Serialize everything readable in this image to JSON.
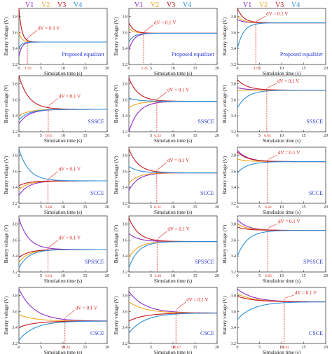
{
  "chart_data": {
    "type": "line",
    "layout": "5 rows x 3 columns of line plots",
    "legend": {
      "labels": [
        "V1",
        "V2",
        "V3",
        "V4"
      ],
      "colors": [
        "#8b2bc7",
        "#f2a51d",
        "#c4161c",
        "#2a8fd8"
      ]
    },
    "xlabel": "Simulation time (s)",
    "ylabel": "Battery voltage (V)",
    "xlim": [
      0,
      20
    ],
    "x_ticks": [
      "0",
      "5",
      "10",
      "15",
      "20"
    ],
    "annotation_label": "dV = 0.1 V",
    "colors": {
      "annotation": "#e0231c",
      "method_label": "#2d3bd6"
    },
    "panels": [
      {
        "row": 0,
        "col": 0,
        "method": "Proposed equalizer",
        "t_eq": 1.92,
        "t_eq_label": "1.92",
        "ylim": [
          3.2,
          3.9
        ],
        "y_ticks": [
          "3.2",
          "3.4",
          "3.6",
          "3.8"
        ],
        "initial": [
          3.3,
          3.6,
          3.9,
          3.4
        ],
        "final": 3.48,
        "y_at_t_eq": 3.53
      },
      {
        "row": 0,
        "col": 1,
        "method": "Proposed equalizer",
        "t_eq": 3.33,
        "t_eq_label": "3.33",
        "ylim": [
          3.2,
          3.9
        ],
        "y_ticks": [
          "3.2",
          "3.4",
          "3.6",
          "3.8"
        ],
        "initial": [
          3.38,
          3.65,
          3.72,
          3.48
        ],
        "final": 3.59,
        "y_at_t_eq": 3.6
      },
      {
        "row": 0,
        "col": 2,
        "method": "Proposed equalizer",
        "t_eq": 4.15,
        "t_eq_label": "4.15",
        "ylim": [
          3.2,
          3.9
        ],
        "y_ticks": [
          "3.2",
          "3.4",
          "3.6",
          "3.8"
        ],
        "initial": [
          3.76,
          3.8,
          3.9,
          3.4
        ],
        "final": 3.72,
        "y_at_t_eq": 3.73
      },
      {
        "row": 1,
        "col": 0,
        "method": "SSSCE",
        "t_eq": 6.65,
        "t_eq_label": "6.65",
        "ylim": [
          3.2,
          3.9
        ],
        "y_ticks": [
          "3.2",
          "3.4",
          "3.6",
          "3.8"
        ],
        "initial": [
          3.3,
          3.4,
          3.9,
          3.35
        ],
        "final": 3.48,
        "y_at_t_eq": 3.52
      },
      {
        "row": 1,
        "col": 1,
        "method": "SSSCE",
        "t_eq": 6.33,
        "t_eq_label": "6.33",
        "ylim": [
          3.2,
          3.9
        ],
        "y_ticks": [
          "3.2",
          "3.4",
          "3.6",
          "3.8"
        ],
        "initial": [
          3.2,
          3.5,
          3.87,
          3.62
        ],
        "final": 3.58,
        "y_at_t_eq": 3.6
      },
      {
        "row": 1,
        "col": 2,
        "method": "SSSCE",
        "t_eq": 6.65,
        "t_eq_label": "6.65",
        "ylim": [
          3.2,
          3.9
        ],
        "y_ticks": [
          "3.2",
          "3.4",
          "3.6",
          "3.8"
        ],
        "initial": [
          3.75,
          3.72,
          3.85,
          3.5
        ],
        "final": 3.72,
        "y_at_t_eq": 3.74
      },
      {
        "row": 2,
        "col": 0,
        "method": "SCCE",
        "t_eq": 6.6,
        "t_eq_label": "6.60",
        "ylim": [
          3.2,
          3.9
        ],
        "y_ticks": [
          "3.2",
          "3.4",
          "3.6",
          "3.8"
        ],
        "initial": [
          3.3,
          3.37,
          3.42,
          3.88
        ],
        "final": 3.48,
        "y_at_t_eq": 3.5
      },
      {
        "row": 2,
        "col": 1,
        "method": "SCCE",
        "t_eq": 6.32,
        "t_eq_label": "6.32",
        "ylim": [
          3.2,
          3.9
        ],
        "y_ticks": [
          "3.2",
          "3.4",
          "3.6",
          "3.8"
        ],
        "initial": [
          3.36,
          3.45,
          3.88,
          3.66
        ],
        "final": 3.58,
        "y_at_t_eq": 3.61
      },
      {
        "row": 2,
        "col": 2,
        "method": "SCCE",
        "t_eq": 6.82,
        "t_eq_label": "6.82",
        "ylim": [
          3.2,
          3.9
        ],
        "y_ticks": [
          "3.2",
          "3.4",
          "3.6",
          "3.8"
        ],
        "initial": [
          3.86,
          3.75,
          3.84,
          3.58
        ],
        "final": 3.72,
        "y_at_t_eq": 3.74
      },
      {
        "row": 3,
        "col": 0,
        "method": "SPSSCE",
        "t_eq": 6.61,
        "t_eq_label": "6.61",
        "ylim": [
          3.2,
          3.9
        ],
        "y_ticks": [
          "3.2",
          "3.4",
          "3.6",
          "3.8"
        ],
        "initial": [
          3.87,
          3.32,
          3.38,
          3.25
        ],
        "final": 3.48,
        "y_at_t_eq": 3.5
      },
      {
        "row": 3,
        "col": 1,
        "method": "SPSSCE",
        "t_eq": 6.4,
        "t_eq_label": "6.40",
        "ylim": [
          3.2,
          3.9
        ],
        "y_ticks": [
          "3.2",
          "3.4",
          "3.6",
          "3.8"
        ],
        "initial": [
          3.68,
          3.38,
          3.88,
          3.25
        ],
        "final": 3.58,
        "y_at_t_eq": 3.61
      },
      {
        "row": 3,
        "col": 2,
        "method": "SPSSCE",
        "t_eq": 6.85,
        "t_eq_label": "6.85",
        "ylim": [
          3.2,
          3.9
        ],
        "y_ticks": [
          "3.2",
          "3.4",
          "3.6",
          "3.8"
        ],
        "initial": [
          3.85,
          3.8,
          3.76,
          3.4
        ],
        "final": 3.72,
        "y_at_t_eq": 3.74
      },
      {
        "row": 4,
        "col": 0,
        "method": "CSCE",
        "t_eq": 10.44,
        "t_eq_label": "10.44",
        "ylim": [
          3.2,
          3.9
        ],
        "y_ticks": [
          "3.2",
          "3.4",
          "3.6",
          "3.8"
        ],
        "initial": [
          3.88,
          3.56,
          3.4,
          3.24
        ],
        "final": 3.48,
        "y_at_t_eq": 3.52
      },
      {
        "row": 4,
        "col": 1,
        "method": "CSCE",
        "t_eq": 10.67,
        "t_eq_label": "10.67",
        "ylim": [
          3.2,
          3.9
        ],
        "y_ticks": [
          "3.2",
          "3.4",
          "3.6",
          "3.8"
        ],
        "initial": [
          3.85,
          3.72,
          3.48,
          3.33
        ],
        "final": 3.58,
        "y_at_t_eq": 3.62
      },
      {
        "row": 4,
        "col": 2,
        "method": "CSCE",
        "t_eq": 10.62,
        "t_eq_label": "10.62",
        "ylim": [
          3.2,
          3.9
        ],
        "y_ticks": [
          "3.2",
          "3.4",
          "3.6",
          "3.8"
        ],
        "initial": [
          3.88,
          3.82,
          3.79,
          3.5
        ],
        "final": 3.72,
        "y_at_t_eq": 3.76
      }
    ]
  }
}
